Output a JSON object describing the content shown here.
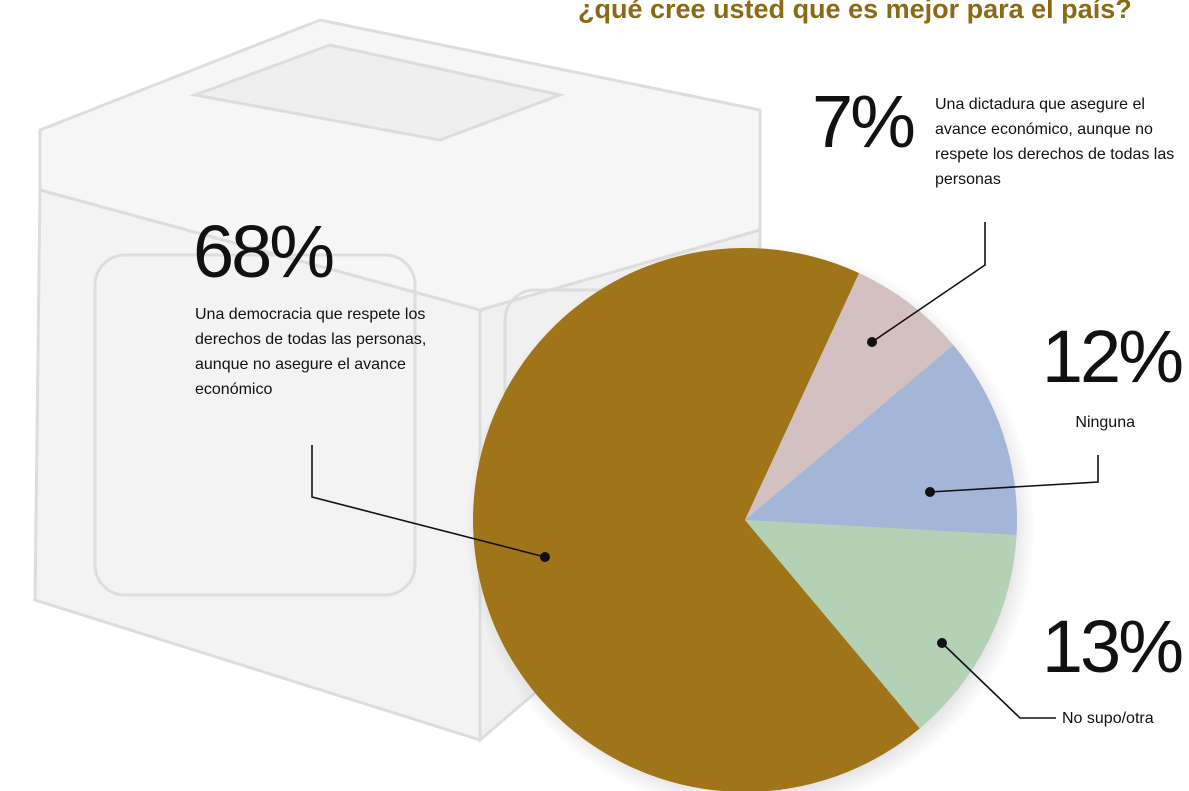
{
  "chart_data": {
    "type": "pie",
    "title": "¿qué cree usted que es mejor para el país?",
    "categories": [
      "Una democracia que respete los derechos de todas las personas, aunque no asegure el avance económico",
      "Una dictadura que asegure el avance económico, aunque no respete los derechos de todas las personas",
      "Ninguna",
      "No supo/otra"
    ],
    "values": [
      68,
      7,
      12,
      13
    ],
    "value_labels": [
      "68%",
      "7%",
      "12%",
      "13%"
    ],
    "colors": [
      "#a07519",
      "#d3c1c2",
      "#a4b6d8",
      "#b3d1b4"
    ]
  }
}
